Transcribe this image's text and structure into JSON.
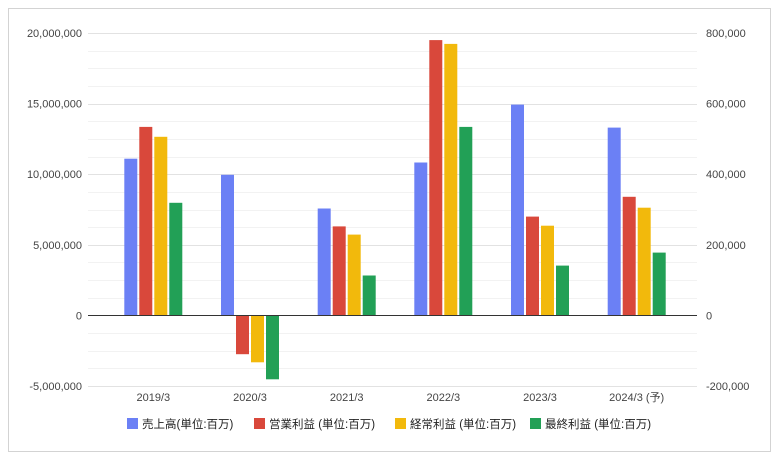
{
  "chart_data": {
    "type": "bar",
    "categories": [
      "2019/3",
      "2020/3",
      "2021/3",
      "2022/3",
      "2023/3",
      "2024/3 (予)"
    ],
    "series": [
      {
        "name": "売上高(単位:百万)",
        "axis": "left",
        "color": "#6b80f5",
        "values": [
          11100000,
          9960000,
          7570000,
          10830000,
          14930000,
          13300000
        ]
      },
      {
        "name": "営業利益 (単位:百万)",
        "axis": "right",
        "color": "#d9483b",
        "values": [
          534000,
          -110000,
          252000,
          780000,
          280000,
          336000
        ]
      },
      {
        "name": "経常利益 (単位:百万)",
        "axis": "right",
        "color": "#f2b90c",
        "values": [
          506000,
          -133000,
          229000,
          769000,
          254000,
          305000
        ]
      },
      {
        "name": "最終利益 (単位:百万)",
        "axis": "right",
        "color": "#22a056",
        "values": [
          319000,
          -181000,
          113000,
          534000,
          141000,
          178000
        ]
      }
    ],
    "left_axis": {
      "min": -5000000,
      "max": 20000000,
      "ticks": [
        -5000000,
        0,
        5000000,
        10000000,
        15000000,
        20000000
      ]
    },
    "right_axis": {
      "min": -200000,
      "max": 800000,
      "ticks": [
        -200000,
        0,
        200000,
        400000,
        600000,
        800000
      ]
    },
    "grid": true,
    "legend_position": "bottom"
  }
}
